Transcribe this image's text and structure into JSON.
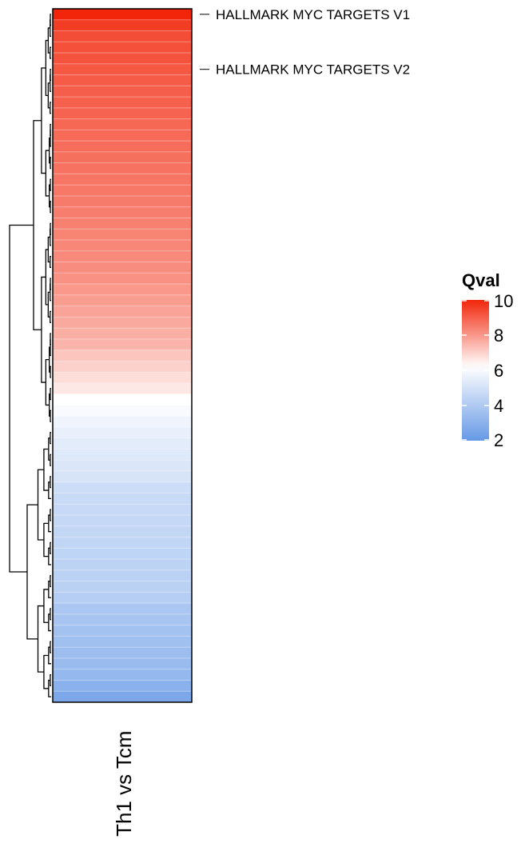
{
  "chart_data": {
    "type": "heatmap",
    "title": "",
    "columns": [
      "Th1 vs Tcm"
    ],
    "row_labels": [
      {
        "row": 0,
        "text": "HALLMARK MYC TARGETS V1"
      },
      {
        "row": 5,
        "text": "HALLMARK MYC TARGETS V2"
      }
    ],
    "values": [
      10.0,
      9.6,
      9.3,
      9.25,
      9.2,
      9.1,
      9.05,
      9.0,
      8.95,
      8.9,
      8.85,
      8.8,
      8.75,
      8.7,
      8.65,
      8.6,
      8.55,
      8.5,
      8.45,
      8.4,
      8.35,
      8.3,
      8.25,
      8.2,
      8.1,
      8.0,
      7.9,
      7.8,
      7.7,
      7.6,
      7.5,
      7.2,
      7.0,
      6.8,
      6.6,
      6.2,
      6.0,
      5.8,
      5.6,
      5.4,
      5.3,
      5.2,
      5.1,
      4.8,
      4.7,
      4.65,
      4.6,
      4.55,
      4.5,
      4.45,
      4.4,
      4.35,
      4.3,
      4.2,
      3.9,
      3.8,
      3.7,
      3.6,
      3.5,
      3.4,
      3.3,
      3.0,
      2.6
    ],
    "legend": {
      "title": "Qval",
      "min": 2,
      "max": 10,
      "ticks": [
        "10",
        "8",
        "6",
        "4",
        "2"
      ],
      "tick_values": [
        10,
        8,
        6,
        4,
        2
      ],
      "placement": "right"
    },
    "colors": {
      "high": "#f2250a",
      "mid": "#ffffff",
      "low": "#6699e6",
      "mid_value": 6.2
    },
    "dendrogram": "left"
  }
}
